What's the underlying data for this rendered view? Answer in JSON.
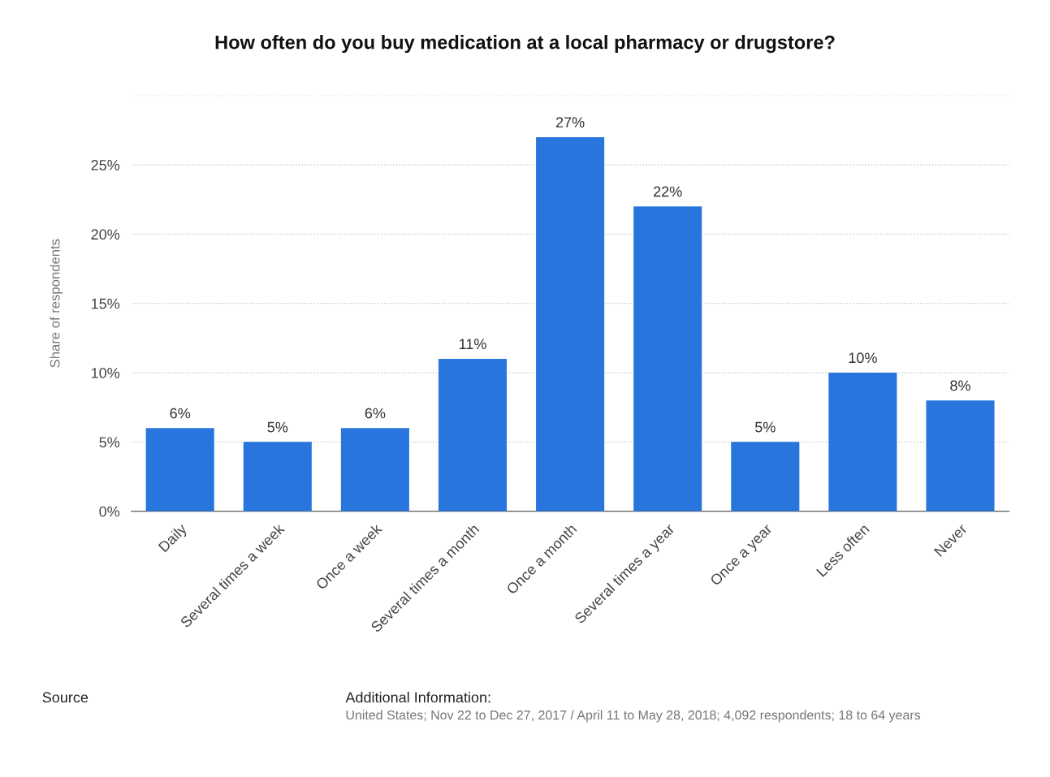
{
  "chart_data": {
    "type": "bar",
    "title": "How often do you buy medication at a local pharmacy or drugstore?",
    "ylabel": "Share of respondents",
    "categories": [
      "Daily",
      "Several times a week",
      "Once a week",
      "Several times a month",
      "Once a month",
      "Several times a year",
      "Once a year",
      "Less often",
      "Never"
    ],
    "values": [
      6,
      5,
      6,
      11,
      27,
      22,
      5,
      10,
      8
    ],
    "value_labels": [
      "6%",
      "5%",
      "6%",
      "11%",
      "27%",
      "22%",
      "5%",
      "10%",
      "8%"
    ],
    "color": "#2876dd",
    "ylim": [
      0,
      30
    ],
    "yticks": [
      {
        "value": 0,
        "label": "0%"
      },
      {
        "value": 5,
        "label": "5%"
      },
      {
        "value": 10,
        "label": "10%"
      },
      {
        "value": 15,
        "label": "15%"
      },
      {
        "value": 20,
        "label": "20%"
      },
      {
        "value": 25,
        "label": "25%"
      },
      {
        "value": 30,
        "label": null
      }
    ],
    "grid": "y",
    "annotations": [
      "Source",
      "Additional Information:",
      "United States; Nov 22 to Dec 27, 2017 / April 11 to May 28, 2018; 4,092 respondents; 18 to 64 years"
    ]
  }
}
